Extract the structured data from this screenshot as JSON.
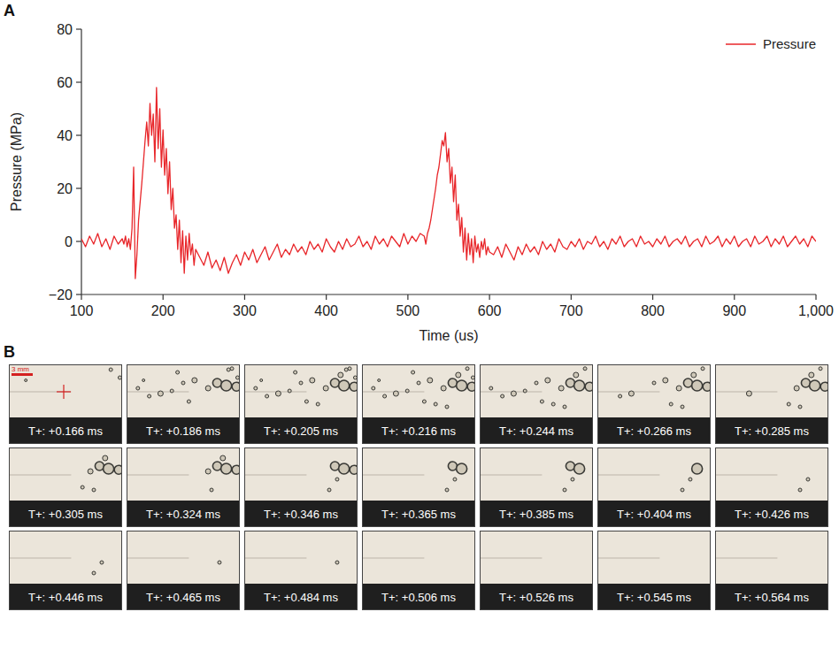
{
  "chart_data": {
    "type": "line",
    "xlabel": "Time (us)",
    "ylabel": "Pressure (MPa)",
    "x": [
      100,
      105,
      110,
      115,
      120,
      125,
      130,
      135,
      140,
      145,
      150,
      152,
      154,
      156,
      158,
      160,
      162,
      164,
      166,
      168,
      170,
      172,
      174,
      176,
      178,
      180,
      182,
      184,
      186,
      188,
      190,
      192,
      194,
      196,
      198,
      200,
      202,
      204,
      206,
      208,
      210,
      212,
      214,
      216,
      218,
      220,
      222,
      224,
      226,
      228,
      230,
      232,
      234,
      236,
      238,
      240,
      245,
      250,
      255,
      260,
      265,
      270,
      275,
      280,
      285,
      290,
      295,
      300,
      305,
      310,
      315,
      320,
      325,
      330,
      335,
      340,
      345,
      350,
      355,
      360,
      365,
      370,
      375,
      380,
      385,
      390,
      395,
      400,
      405,
      410,
      415,
      420,
      425,
      430,
      435,
      440,
      445,
      450,
      455,
      460,
      465,
      470,
      475,
      480,
      485,
      490,
      495,
      500,
      505,
      510,
      515,
      520,
      522,
      524,
      526,
      528,
      530,
      532,
      534,
      536,
      538,
      540,
      542,
      544,
      546,
      548,
      550,
      552,
      554,
      556,
      558,
      560,
      562,
      564,
      566,
      568,
      570,
      572,
      574,
      576,
      578,
      580,
      582,
      584,
      586,
      588,
      590,
      592,
      594,
      596,
      598,
      600,
      605,
      610,
      615,
      620,
      625,
      630,
      635,
      640,
      645,
      650,
      655,
      660,
      665,
      670,
      675,
      680,
      685,
      690,
      695,
      700,
      705,
      710,
      715,
      720,
      725,
      730,
      735,
      740,
      745,
      750,
      755,
      760,
      765,
      770,
      775,
      780,
      785,
      790,
      795,
      800,
      805,
      810,
      815,
      820,
      825,
      830,
      835,
      840,
      845,
      850,
      855,
      860,
      865,
      870,
      875,
      880,
      885,
      890,
      895,
      900,
      905,
      910,
      915,
      920,
      925,
      930,
      935,
      940,
      945,
      950,
      955,
      960,
      965,
      970,
      975,
      980,
      985,
      990,
      995,
      1000
    ],
    "series": [
      {
        "name": "Pressure",
        "color": "#e8262a",
        "values": [
          1,
          -2,
          2,
          -1,
          3,
          -2,
          1,
          -3,
          2,
          -1,
          1,
          -1,
          2,
          -2,
          1,
          -3,
          5,
          28,
          -14,
          -5,
          8,
          15,
          22,
          30,
          38,
          45,
          36,
          52,
          40,
          48,
          30,
          58,
          35,
          50,
          28,
          42,
          25,
          35,
          18,
          30,
          12,
          20,
          5,
          10,
          -3,
          8,
          -8,
          4,
          -12,
          2,
          -7,
          3,
          -5,
          -1,
          -9,
          -3,
          -6,
          -9,
          -4,
          -10,
          -7,
          -11,
          -6,
          -12,
          -8,
          -5,
          -9,
          -4,
          -7,
          -3,
          -8,
          -5,
          -2,
          -7,
          -4,
          -1,
          -6,
          -3,
          -5,
          -1,
          -4,
          -2,
          -5,
          0,
          -3,
          -1,
          -4,
          1,
          -2,
          -4,
          0,
          -3,
          1,
          -2,
          -1,
          2,
          -2,
          0,
          -3,
          2,
          -1,
          1,
          -2,
          2,
          0,
          -2,
          3,
          -1,
          2,
          0,
          3,
          2,
          -1,
          3,
          5,
          8,
          12,
          16,
          20,
          25,
          28,
          33,
          38,
          36,
          41,
          30,
          35,
          22,
          28,
          15,
          25,
          8,
          14,
          2,
          9,
          -4,
          5,
          -7,
          3,
          -5,
          1,
          -8,
          2,
          -4,
          -1,
          -6,
          0,
          -3,
          1,
          -5,
          -2,
          -4,
          -5,
          -2,
          -6,
          -1,
          -4,
          -7,
          -2,
          -5,
          -1,
          -4,
          -2,
          -5,
          0,
          -3,
          -1,
          -4,
          1,
          -2,
          -3,
          0,
          -2,
          1,
          -3,
          0,
          -1,
          2,
          -2,
          0,
          -3,
          1,
          -1,
          2,
          -2,
          0,
          1,
          -2,
          2,
          -1,
          0,
          -2,
          1,
          -1,
          2,
          -2,
          0,
          1,
          -1,
          2,
          -2,
          0,
          1,
          -2,
          2,
          -1,
          0,
          2,
          -2,
          1,
          -1,
          2,
          -2,
          0,
          1,
          -2,
          2,
          -1,
          0,
          2,
          -2,
          1,
          -1,
          2,
          -2,
          0,
          2,
          -1,
          1,
          -2,
          2,
          0
        ]
      }
    ],
    "xlim": [
      100,
      1000
    ],
    "ylim": [
      -20,
      80
    ],
    "xticks": [
      100,
      200,
      300,
      400,
      500,
      600,
      700,
      800,
      900,
      {
        "value": 1000,
        "label": "1,000"
      }
    ],
    "yticks": [
      {
        "value": -20,
        "label": "−20"
      },
      0,
      20,
      40,
      60,
      80
    ],
    "legend": "upper right",
    "grid": false
  },
  "panel_labels": [
    "A",
    "B"
  ],
  "image_sequence": {
    "scale_bar": "3 mm",
    "frames": [
      "T+: +0.166 ms",
      "T+: +0.186 ms",
      "T+: +0.205 ms",
      "T+: +0.216 ms",
      "T+: +0.244 ms",
      "T+: +0.266 ms",
      "T+: +0.285 ms",
      "T+: +0.305 ms",
      "T+: +0.324 ms",
      "T+: +0.346 ms",
      "T+: +0.365 ms",
      "T+: +0.385 ms",
      "T+: +0.404 ms",
      "T+: +0.426 ms",
      "T+: +0.446 ms",
      "T+: +0.465 ms",
      "T+: +0.484 ms",
      "T+: +0.506 ms",
      "T+: +0.526 ms",
      "T+: +0.545 ms",
      "T+: +0.564 ms"
    ]
  }
}
